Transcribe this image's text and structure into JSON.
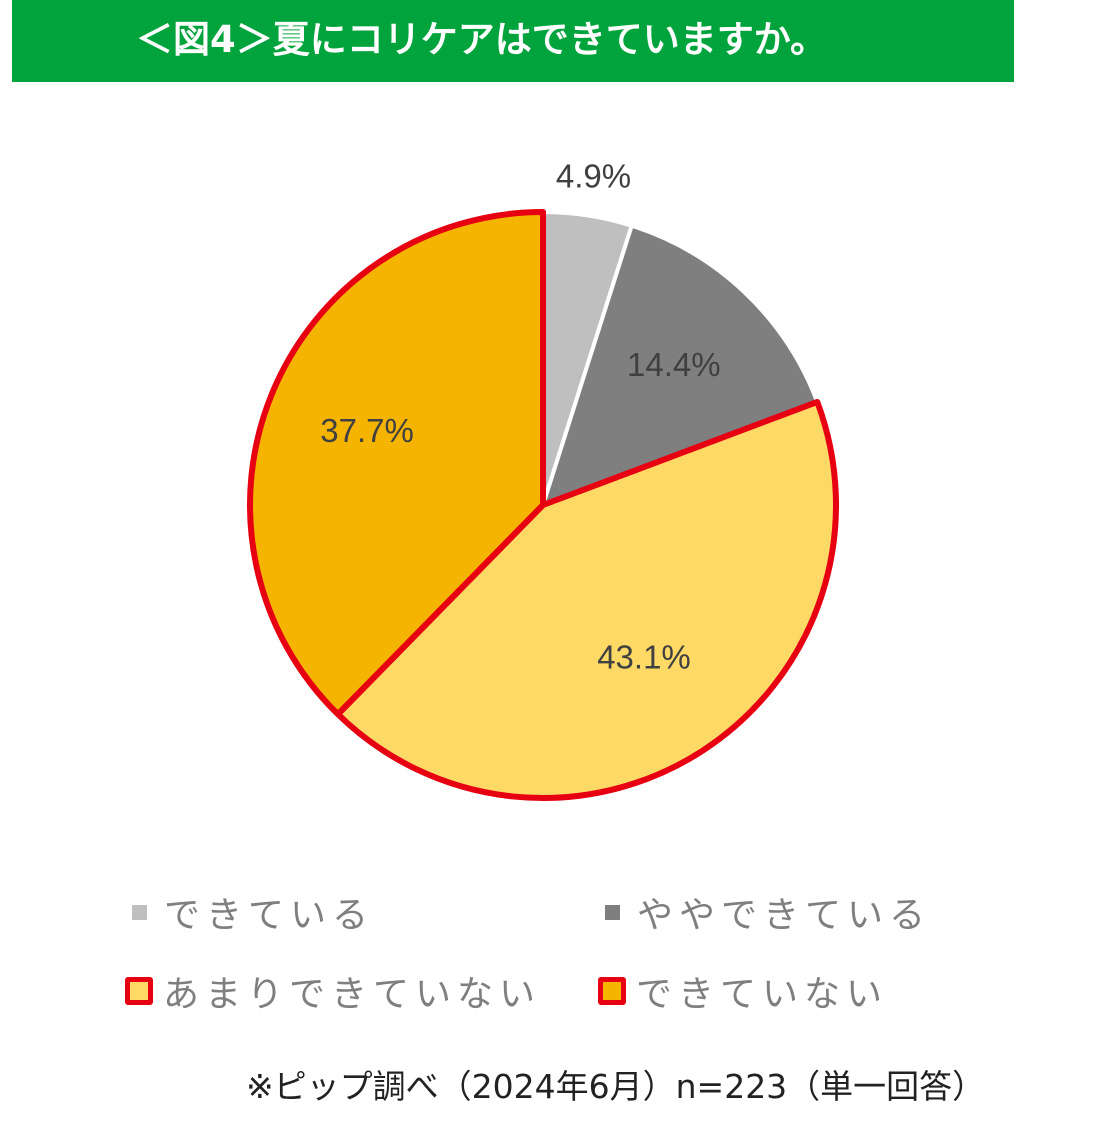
{
  "header": {
    "title": "＜図4＞夏にコリケアはできていますか。"
  },
  "chart_data": {
    "type": "pie",
    "title": "＜図4＞夏にコリケアはできていますか。",
    "unit": "%",
    "start_angle_deg": 0,
    "direction": "clockwise",
    "slices": [
      {
        "label": "できている",
        "value": 4.9,
        "display": "4.9%",
        "color": "#bfbfbf",
        "outlined": false
      },
      {
        "label": "ややできている",
        "value": 14.4,
        "display": "14.4%",
        "color": "#7f7f7f",
        "outlined": false
      },
      {
        "label": "あまりできていない",
        "value": 43.1,
        "display": "43.1%",
        "color": "#ffd966",
        "outlined": true
      },
      {
        "label": "できていない",
        "value": 37.7,
        "display": "37.7%",
        "color": "#f5b400",
        "outlined": true
      }
    ],
    "highlight_outline_color": "#e60012",
    "legend_position": "bottom"
  },
  "footnote": "※ピップ調べ（2024年6月）n=223（単一回答）"
}
